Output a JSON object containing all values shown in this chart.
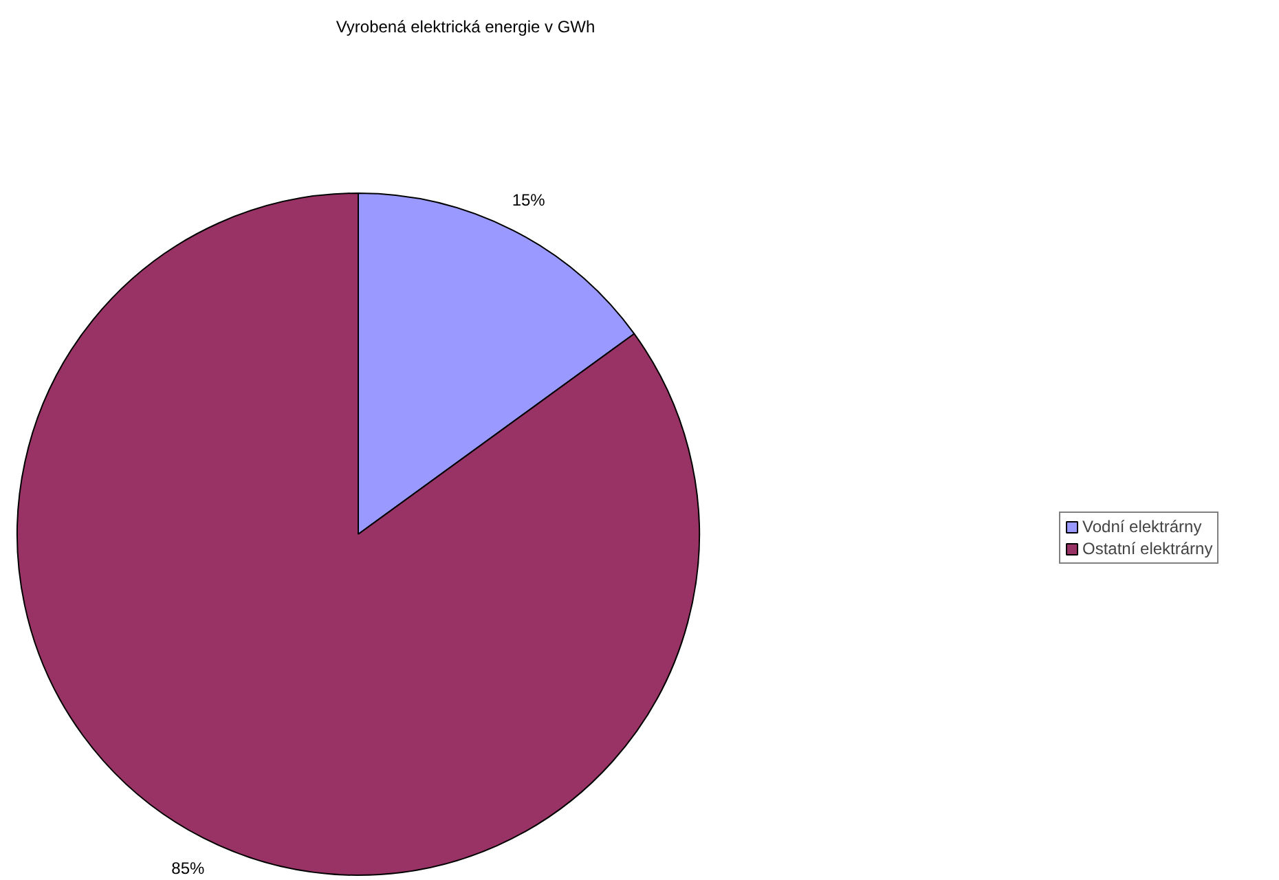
{
  "chart_data": {
    "type": "pie",
    "title": "Vyrobená elektrická energie v GWh",
    "categories": [
      "Vodní elektrárny",
      "Ostatní elektrárny"
    ],
    "values": [
      15,
      85
    ],
    "colors": [
      "#9999ff",
      "#993366"
    ],
    "value_labels": [
      "15%",
      "85%"
    ],
    "legend": "right"
  }
}
